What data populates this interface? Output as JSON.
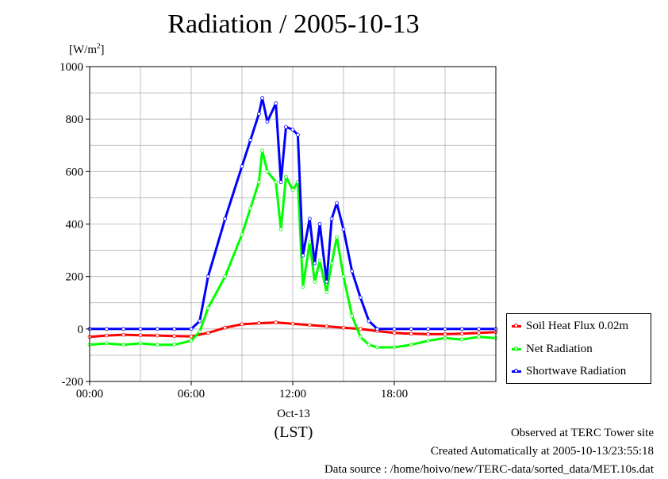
{
  "chart_data": {
    "type": "line",
    "title": "Radiation / 2005-10-13",
    "ylabel": "[W/m2]",
    "xlabel": "(LST)",
    "date_label": "Oct-13",
    "ylim": [
      -200,
      1000
    ],
    "xlim": [
      0,
      24
    ],
    "yticks": [
      -200,
      0,
      200,
      400,
      600,
      800,
      1000
    ],
    "xticks": [
      0,
      6,
      12,
      18
    ],
    "xtick_labels": [
      "00:00",
      "06:00",
      "12:00",
      "18:00"
    ],
    "grid": true,
    "legend_position": "bottom-right",
    "x_unit": "hours",
    "series": [
      {
        "name": "Soil Heat Flux 0.02m",
        "color": "#ff0000",
        "x": [
          0,
          1,
          2,
          3,
          4,
          5,
          6,
          7,
          8,
          9,
          10,
          11,
          12,
          13,
          14,
          15,
          16,
          17,
          18,
          19,
          20,
          21,
          22,
          23,
          24
        ],
        "y": [
          -30,
          -25,
          -22,
          -24,
          -25,
          -27,
          -28,
          -15,
          5,
          18,
          22,
          25,
          20,
          15,
          10,
          5,
          0,
          -8,
          -15,
          -18,
          -20,
          -20,
          -18,
          -15,
          -12
        ]
      },
      {
        "name": "Net Radiation",
        "color": "#00ff00",
        "x": [
          0,
          1,
          2,
          3,
          4,
          5,
          6,
          6.5,
          7,
          8,
          9,
          9.5,
          10,
          10.2,
          10.5,
          11,
          11.3,
          11.6,
          12,
          12.3,
          12.6,
          13,
          13.3,
          13.6,
          14,
          14.3,
          14.6,
          15,
          15.5,
          16,
          16.5,
          17,
          18,
          19,
          20,
          21,
          22,
          23,
          24
        ],
        "y": [
          -60,
          -55,
          -60,
          -55,
          -60,
          -60,
          -45,
          -10,
          80,
          200,
          360,
          460,
          560,
          680,
          600,
          560,
          380,
          580,
          530,
          560,
          160,
          330,
          180,
          260,
          140,
          250,
          350,
          200,
          50,
          -30,
          -60,
          -70,
          -70,
          -60,
          -45,
          -35,
          -40,
          -30,
          -35
        ]
      },
      {
        "name": "Shortwave Radiation",
        "color": "#0000ff",
        "x": [
          0,
          1,
          2,
          3,
          4,
          5,
          6,
          6.5,
          7,
          8,
          9,
          9.5,
          10,
          10.2,
          10.5,
          11,
          11.3,
          11.6,
          12,
          12.3,
          12.6,
          13,
          13.3,
          13.6,
          14,
          14.3,
          14.6,
          15,
          15.5,
          16,
          16.5,
          17,
          18,
          19,
          20,
          21,
          22,
          23,
          24
        ],
        "y": [
          0,
          0,
          0,
          0,
          0,
          0,
          0,
          30,
          200,
          420,
          620,
          720,
          820,
          880,
          790,
          860,
          560,
          770,
          760,
          740,
          280,
          420,
          250,
          400,
          180,
          420,
          480,
          380,
          220,
          120,
          30,
          0,
          0,
          0,
          0,
          0,
          0,
          0,
          0
        ]
      }
    ]
  },
  "footer": {
    "line1": "Observed at TERC Tower site",
    "line2": "Created Automatically at 2005-10-13/23:55:18",
    "line3": "Data source : /home/hoivo/new/TERC-data/sorted_data/MET.10s.dat"
  }
}
